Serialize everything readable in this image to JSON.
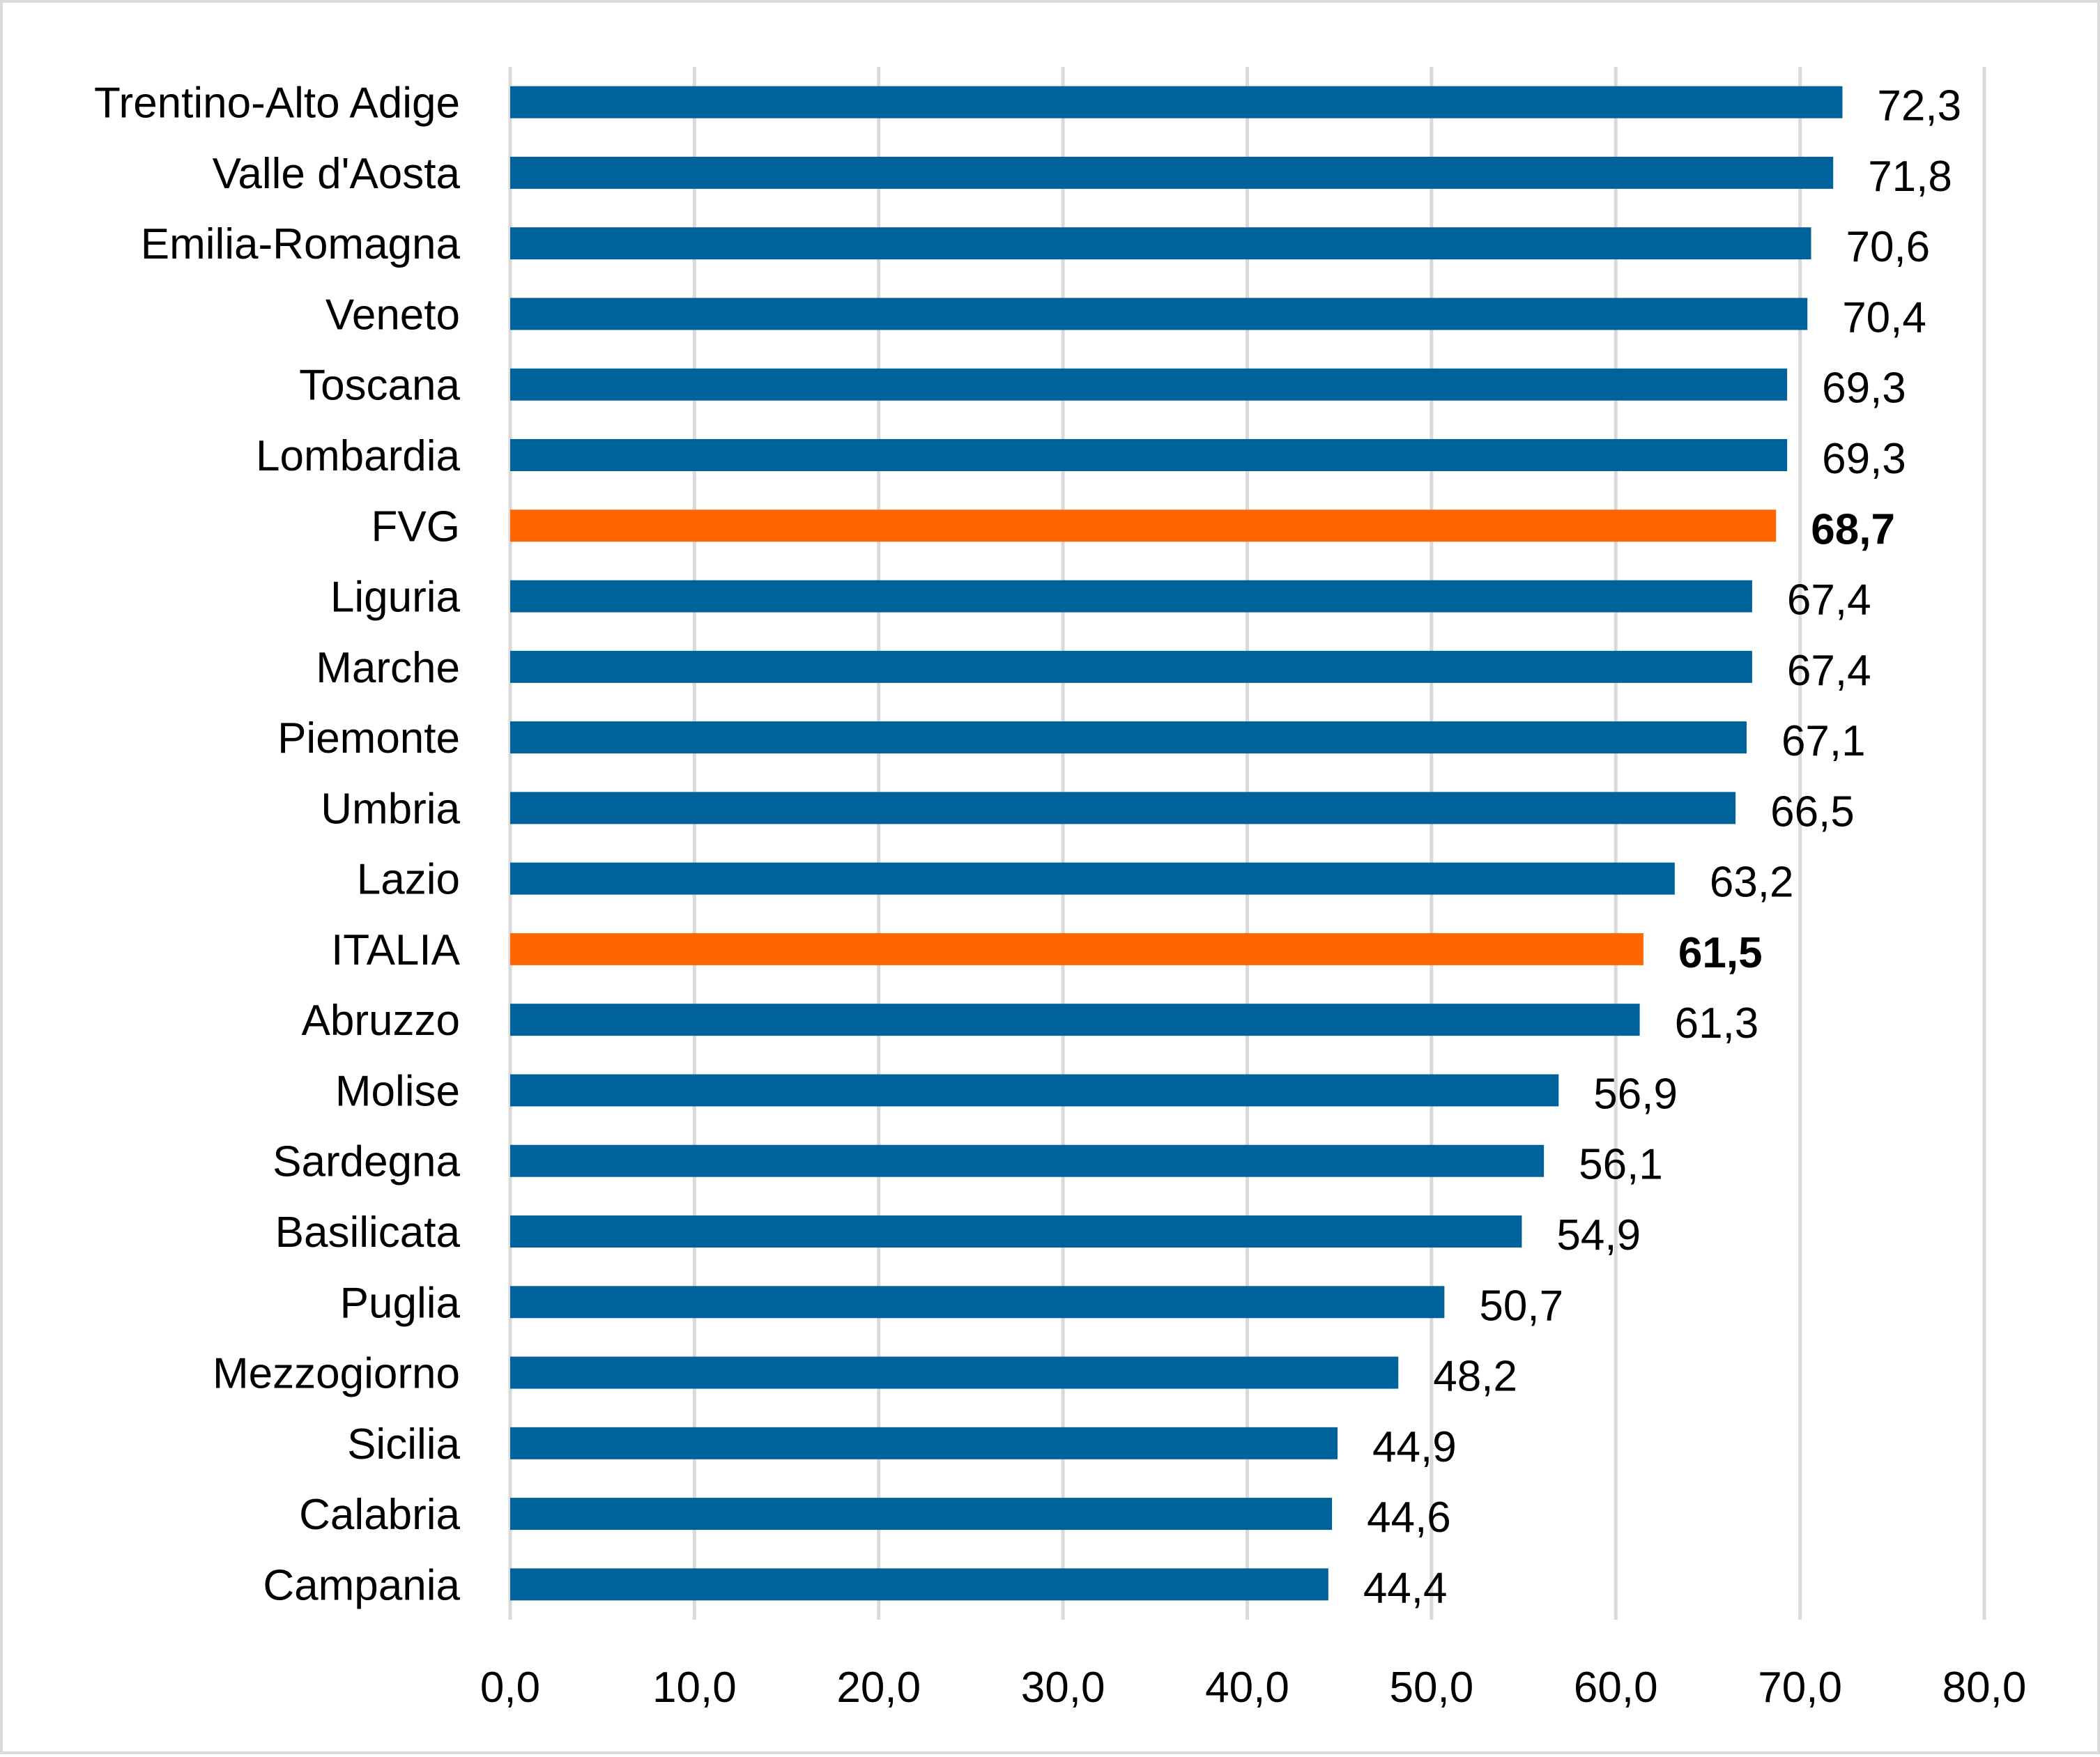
{
  "chart_data": {
    "type": "bar",
    "orientation": "horizontal",
    "categories": [
      "Trentino-Alto Adige",
      "Valle d'Aosta",
      "Emilia-Romagna",
      "Veneto",
      "Toscana",
      "Lombardia",
      "FVG",
      "Liguria",
      "Marche",
      "Piemonte",
      "Umbria",
      "Lazio",
      "ITALIA",
      "Abruzzo",
      "Molise",
      "Sardegna",
      "Basilicata",
      "Puglia",
      "Mezzogiorno",
      "Sicilia",
      "Calabria",
      "Campania"
    ],
    "values": [
      72.3,
      71.8,
      70.6,
      70.4,
      69.3,
      69.3,
      68.7,
      67.4,
      67.4,
      67.1,
      66.5,
      63.2,
      61.5,
      61.3,
      56.9,
      56.1,
      54.9,
      50.7,
      48.2,
      44.9,
      44.6,
      44.4
    ],
    "value_labels": [
      "72,3",
      "71,8",
      "70,6",
      "70,4",
      "69,3",
      "69,3",
      "68,7",
      "67,4",
      "67,4",
      "67,1",
      "66,5",
      "63,2",
      "61,5",
      "61,3",
      "56,9",
      "56,1",
      "54,9",
      "50,7",
      "48,2",
      "44,9",
      "44,6",
      "44,4"
    ],
    "highlight": [
      "FVG",
      "ITALIA"
    ],
    "xlim": [
      0,
      80
    ],
    "x_ticks": [
      "0,0",
      "10,0",
      "20,0",
      "30,0",
      "40,0",
      "50,0",
      "60,0",
      "70,0",
      "80,0"
    ],
    "grid": true,
    "title": "",
    "xlabel": "",
    "ylabel": "",
    "colors": {
      "bar": "#00629b",
      "highlight": "#ff6600"
    }
  }
}
